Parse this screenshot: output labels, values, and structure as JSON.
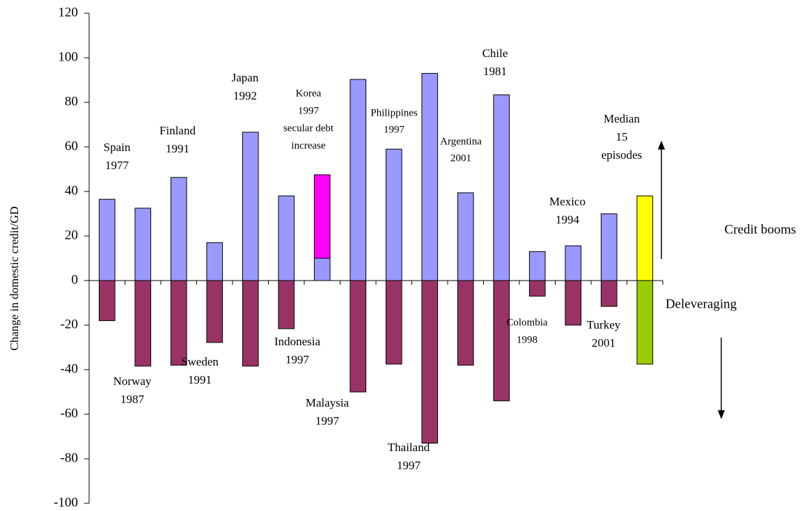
{
  "chart_data": {
    "type": "bar",
    "stacked": true,
    "y_axis_label": "Change in domestic credit/GD",
    "upper_label": "Credit booms",
    "lower_label": "Deleveraging",
    "categories": [
      [
        "Spain",
        "1977"
      ],
      [
        "Norway",
        "1987"
      ],
      [
        "Finland",
        "1991"
      ],
      [
        "Sweden",
        "1991"
      ],
      [
        "Japan",
        "1992"
      ],
      [
        "Indonesia",
        "1997"
      ],
      [
        "Korea",
        "1997",
        "secular debt",
        "increase"
      ],
      [
        "Malaysia",
        "1997"
      ],
      [
        "Philippines",
        "1997"
      ],
      [
        "Thailand",
        "1997"
      ],
      [
        "Argentina",
        "2001"
      ],
      [
        "Chile",
        "1981"
      ],
      [
        "Colombia",
        "1998"
      ],
      [
        "Mexico",
        "1994"
      ],
      [
        "Turkey",
        "2001"
      ],
      [
        "Median",
        "15",
        "episodes"
      ]
    ],
    "series": [
      {
        "color": "#9999ff",
        "values": [
          36.5,
          32.5,
          46.3,
          17,
          66.6,
          38,
          10,
          90.3,
          59,
          93,
          39.4,
          83.4,
          13,
          15.6,
          30,
          null
        ]
      },
      {
        "color": "#ff00ff",
        "values": [
          null,
          null,
          null,
          null,
          null,
          null,
          37.5,
          null,
          null,
          null,
          null,
          null,
          null,
          null,
          null,
          null
        ]
      },
      {
        "color": "#993366",
        "values": [
          -18,
          -38.4,
          -38,
          -27.8,
          -38.4,
          -21.6,
          null,
          -50,
          -37.5,
          -73,
          -38,
          -54,
          -7,
          -20,
          -11.6,
          null
        ]
      },
      {
        "color": "#ffff00",
        "values": [
          null,
          null,
          null,
          null,
          null,
          null,
          null,
          null,
          null,
          null,
          null,
          null,
          null,
          null,
          null,
          38
        ]
      },
      {
        "color": "#99cc00",
        "values": [
          null,
          null,
          null,
          null,
          null,
          null,
          null,
          null,
          null,
          null,
          null,
          null,
          null,
          null,
          null,
          -37.5
        ]
      }
    ],
    "ylim": [
      -100,
      120
    ],
    "yticks": [
      -100,
      -80,
      -60,
      -40,
      -20,
      0,
      20,
      40,
      60,
      80,
      100,
      120
    ]
  }
}
